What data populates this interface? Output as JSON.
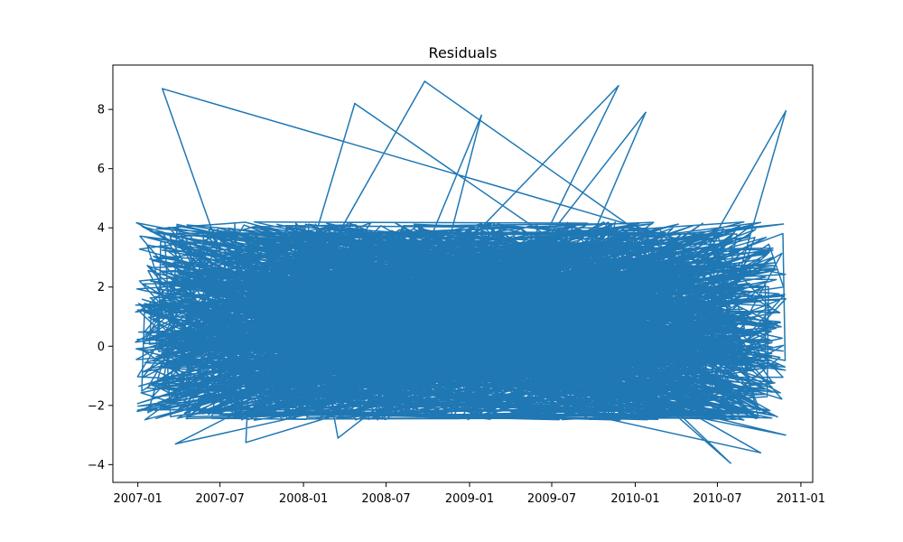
{
  "chart_data": {
    "type": "line",
    "title": "Residuals",
    "xlabel": "",
    "ylabel": "",
    "x_axis": {
      "kind": "date",
      "range": [
        "2006-11-07",
        "2011-01-27"
      ],
      "ticks": [
        "2007-01",
        "2007-07",
        "2008-01",
        "2008-07",
        "2009-01",
        "2009-07",
        "2010-01",
        "2010-07",
        "2011-01"
      ],
      "tick_dates": [
        "2007-01-01",
        "2007-07-01",
        "2008-01-01",
        "2008-07-01",
        "2009-01-01",
        "2009-07-01",
        "2010-01-01",
        "2010-07-01",
        "2011-01-01"
      ]
    },
    "y_axis": {
      "range": [
        -4.6,
        9.5
      ],
      "ticks": [
        -4,
        -2,
        0,
        2,
        4,
        6,
        8
      ]
    },
    "grid": false,
    "legend": "none",
    "series": [
      {
        "color": "#1f77b4",
        "x_span": [
          "2006-12-27",
          "2010-11-30"
        ],
        "y_quantiles": {
          "min": -3.9,
          "p1": -2.5,
          "q1": -0.7,
          "median": 0.8,
          "q3": 2.3,
          "p99": 4.2,
          "max": 8.95
        },
        "notable_points": [
          {
            "x": "2007-02-24",
            "y": 8.7
          },
          {
            "x": "2008-09-24",
            "y": 8.95
          },
          {
            "x": "2009-11-25",
            "y": 8.8
          },
          {
            "x": "2010-11-29",
            "y": 7.95
          },
          {
            "x": "2008-04-23",
            "y": 8.2
          },
          {
            "x": "2010-01-24",
            "y": 7.9
          },
          {
            "x": "2009-01-27",
            "y": 7.8
          },
          {
            "x": "2010-07-30",
            "y": -3.95
          },
          {
            "x": "2010-10-04",
            "y": -3.6
          },
          {
            "x": "2007-03-25",
            "y": -3.3
          },
          {
            "x": "2008-03-17",
            "y": -3.1
          },
          {
            "x": "2007-08-27",
            "y": -3.25
          },
          {
            "x": "2006-12-31",
            "y": -2.2
          },
          {
            "x": "2010-11-28",
            "y": -3.0
          }
        ]
      }
    ]
  }
}
